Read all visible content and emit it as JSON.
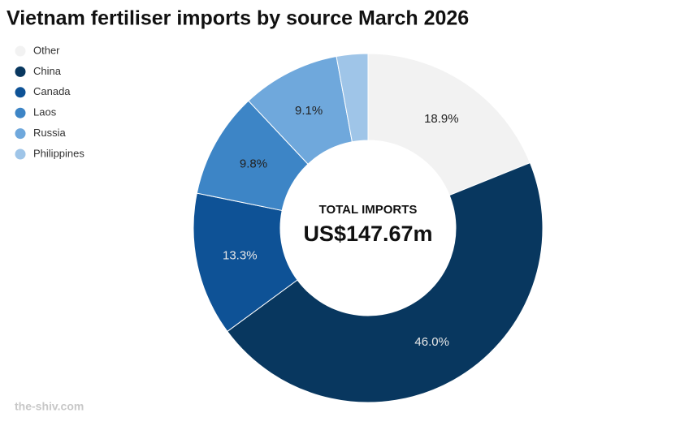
{
  "chart_data": {
    "type": "donut",
    "title": "Vietnam fertiliser imports by source March 2026",
    "center_label": "TOTAL IMPORTS",
    "center_value": "US$147.67m",
    "source": "the-shiv.com",
    "categories": [
      "Other",
      "China",
      "Canada",
      "Laos",
      "Russia",
      "Philippines"
    ],
    "values": [
      18.9,
      46.0,
      13.3,
      9.8,
      9.1,
      2.9
    ],
    "value_labels": [
      "18.9%",
      "46.0%",
      "13.3%",
      "9.8%",
      "9.1%",
      null
    ],
    "colors": [
      "#f2f2f2",
      "#08375f",
      "#0e5296",
      "#3d85c6",
      "#6fa8dc",
      "#9fc5e8"
    ],
    "legend": "top-left"
  }
}
